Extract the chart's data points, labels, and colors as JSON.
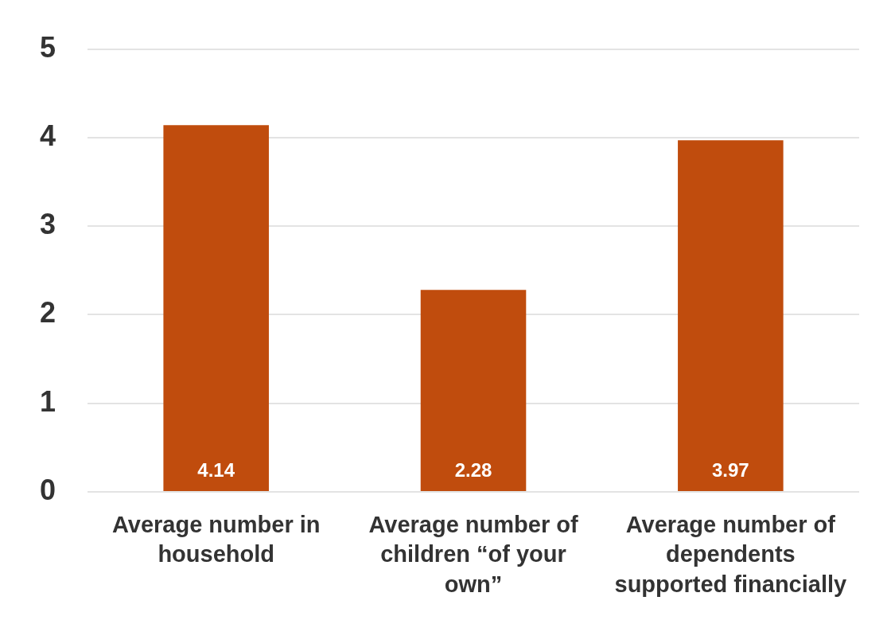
{
  "chart_data": {
    "type": "bar",
    "categories": [
      "Average number in household",
      "Average number of children “of your own”",
      "Average number of dependents supported financially"
    ],
    "values": [
      4.14,
      2.28,
      3.97
    ],
    "color": "#c04c0d",
    "ylim": [
      0,
      5
    ],
    "yticks": [
      0,
      1,
      2,
      3,
      4,
      5
    ],
    "grid": "y",
    "data_labels": true,
    "legend": false
  }
}
